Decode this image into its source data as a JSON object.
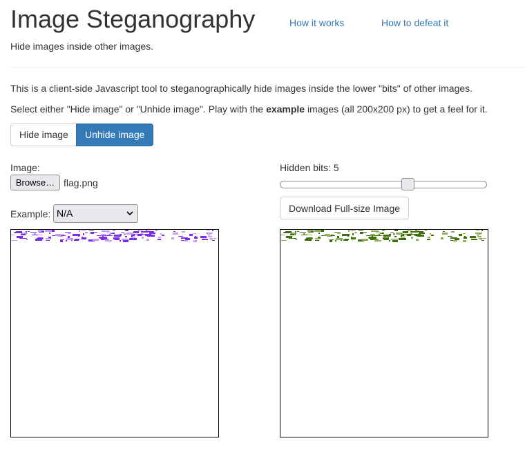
{
  "header": {
    "title": "Image Steganography",
    "nav": [
      {
        "label": "How it works"
      },
      {
        "label": "How to defeat it"
      }
    ],
    "tagline": "Hide images inside other images."
  },
  "intro": {
    "line1": "This is a client-side Javascript tool to steganographically hide images inside the lower \"bits\" of other images.",
    "line2_before": "Select either \"Hide image\" or \"Unhide image\". Play with the ",
    "line2_bold": "example",
    "line2_after": " images (all 200x200 px) to get a feel for it."
  },
  "mode_buttons": {
    "hide_label": "Hide image",
    "unhide_label": "Unhide image",
    "active": "Unhide image"
  },
  "input": {
    "image_label": "Image:",
    "browse_label": "Browse…",
    "file_name": "flag.png",
    "example_label": "Example:",
    "example_selected": "N/A"
  },
  "controls": {
    "hidden_bits_label": "Hidden bits: 5",
    "hidden_bits_value": 5,
    "hidden_bits_max": 8,
    "download_label": "Download Full-size Image"
  },
  "images": {
    "source_colors": [
      "#7a2fe6",
      "#c89cf5"
    ],
    "output_colors": [
      "#3f6e0f",
      "#8fb05a"
    ]
  },
  "icons": {
    "select_arrow": "chevron-down-icon"
  }
}
